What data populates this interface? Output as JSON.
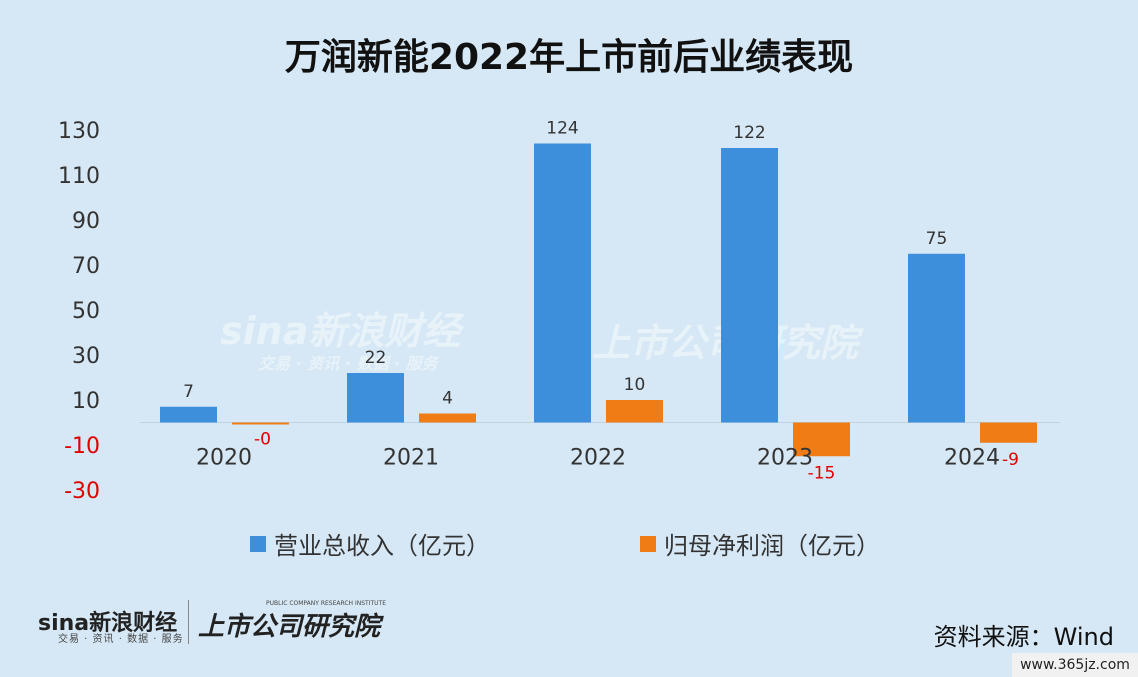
{
  "title": "万润新能2022年上市前后业绩表现",
  "chart_data": {
    "type": "bar",
    "categories": [
      "2020",
      "2021",
      "2022",
      "2023",
      "2024"
    ],
    "series": [
      {
        "name": "营业总收入（亿元）",
        "values": [
          7,
          22,
          124,
          122,
          75
        ],
        "labels": [
          "7",
          "22",
          "124",
          "122",
          "75"
        ],
        "color": "#3d8edb",
        "label_color": "#333333"
      },
      {
        "name": "归母净利润（亿元）",
        "values": [
          0,
          4,
          10,
          -15,
          -9
        ],
        "labels": [
          "-0",
          "4",
          "10",
          "-15",
          "-9"
        ],
        "color": "#f07c16",
        "label_color": "#333333",
        "negative_label_color": "#e00000"
      }
    ],
    "y_ticks": [
      "130",
      "110",
      "90",
      "70",
      "50",
      "30",
      "10",
      "-10",
      "-30"
    ],
    "negative_tick_color": "#e00000",
    "ylim": [
      -30,
      130
    ],
    "legend_position": "bottom"
  },
  "source": "资料来源：Wind",
  "footer": {
    "brand": "sina新浪财经",
    "brand_sub": "交易 · 资讯 · 数据 · 服务",
    "institute": "上市公司研究院",
    "institute_sub": "PUBLIC COMPANY RESEARCH INSTITUTE"
  },
  "watermark": {
    "brand": "sina新浪财经",
    "brand_sub": "交易 · 资讯 · 数据 · 服务",
    "institute": "上市公司研究院"
  },
  "site": "www.365jz.com"
}
